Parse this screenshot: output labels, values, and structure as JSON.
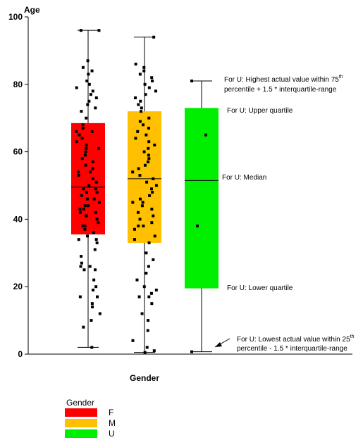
{
  "chart_data": {
    "type": "box",
    "ylabel": "Age",
    "xlabel": "Gender",
    "ylim": [
      0,
      100
    ],
    "yticks": [
      0,
      20,
      40,
      60,
      80,
      100
    ],
    "groups": [
      {
        "name": "F",
        "color": "#ff0000",
        "whisker_low": 2,
        "q1": 35.5,
        "median": 49.5,
        "q3": 68.5,
        "whisker_high": 96,
        "points": [
          2,
          8,
          10,
          12,
          14,
          15,
          17,
          17,
          19,
          20,
          22,
          25,
          25,
          26,
          26,
          27,
          29,
          31,
          33,
          34,
          34,
          35,
          36,
          37,
          38,
          38,
          39,
          40,
          41,
          41,
          42,
          42,
          43,
          43,
          44,
          44,
          45,
          46,
          46,
          47,
          48,
          48,
          49,
          49,
          50,
          51,
          52,
          53,
          54,
          54,
          55,
          56,
          57,
          58,
          59,
          60,
          61,
          61,
          62,
          63,
          64,
          65,
          66,
          66,
          67,
          68,
          70,
          72,
          73,
          74,
          75,
          76,
          77,
          78,
          79,
          80,
          81,
          83,
          84,
          85,
          87,
          96,
          96
        ]
      },
      {
        "name": "M",
        "color": "#ffc000",
        "whisker_low": 0.5,
        "q1": 33,
        "median": 52,
        "q3": 72,
        "whisker_high": 94,
        "points": [
          0.5,
          1,
          2,
          4,
          7,
          10,
          12,
          15,
          17,
          17,
          18,
          19,
          20,
          22,
          24,
          26,
          28,
          30,
          33,
          34,
          35,
          37,
          38,
          38,
          39,
          40,
          41,
          42,
          43,
          44,
          45,
          45,
          46,
          47,
          48,
          49,
          50,
          51,
          52,
          53,
          54,
          55,
          56,
          57,
          58,
          59,
          60,
          61,
          62,
          63,
          64,
          65,
          66,
          67,
          68,
          69,
          70,
          72,
          73,
          74,
          75,
          76,
          77,
          78,
          79,
          80,
          81,
          82,
          83,
          84,
          85,
          86,
          94
        ]
      },
      {
        "name": "U",
        "color": "#00ee00",
        "whisker_low": 0.7,
        "q1": 19.5,
        "median": 51.5,
        "q3": 73,
        "whisker_high": 81,
        "points": [
          0.7,
          38,
          65,
          81
        ]
      }
    ],
    "annotations": {
      "high_line1": "For U: Highest actual value within 75",
      "high_sup": "th",
      "high_line2": "percentile + 1.5 * interquartile-range",
      "upper_quartile": "For U: Upper quartile",
      "median": "For U: Median",
      "lower_quartile": "For U: Lower quartile",
      "low_line1": "For U: Lowest actual value within 25",
      "low_sup": "th",
      "low_line2": "percentile - 1.5 * interquartile-range"
    },
    "legend": {
      "title": "Gender",
      "items": [
        "F",
        "M",
        "U"
      ],
      "placement": "bottom-left"
    }
  }
}
